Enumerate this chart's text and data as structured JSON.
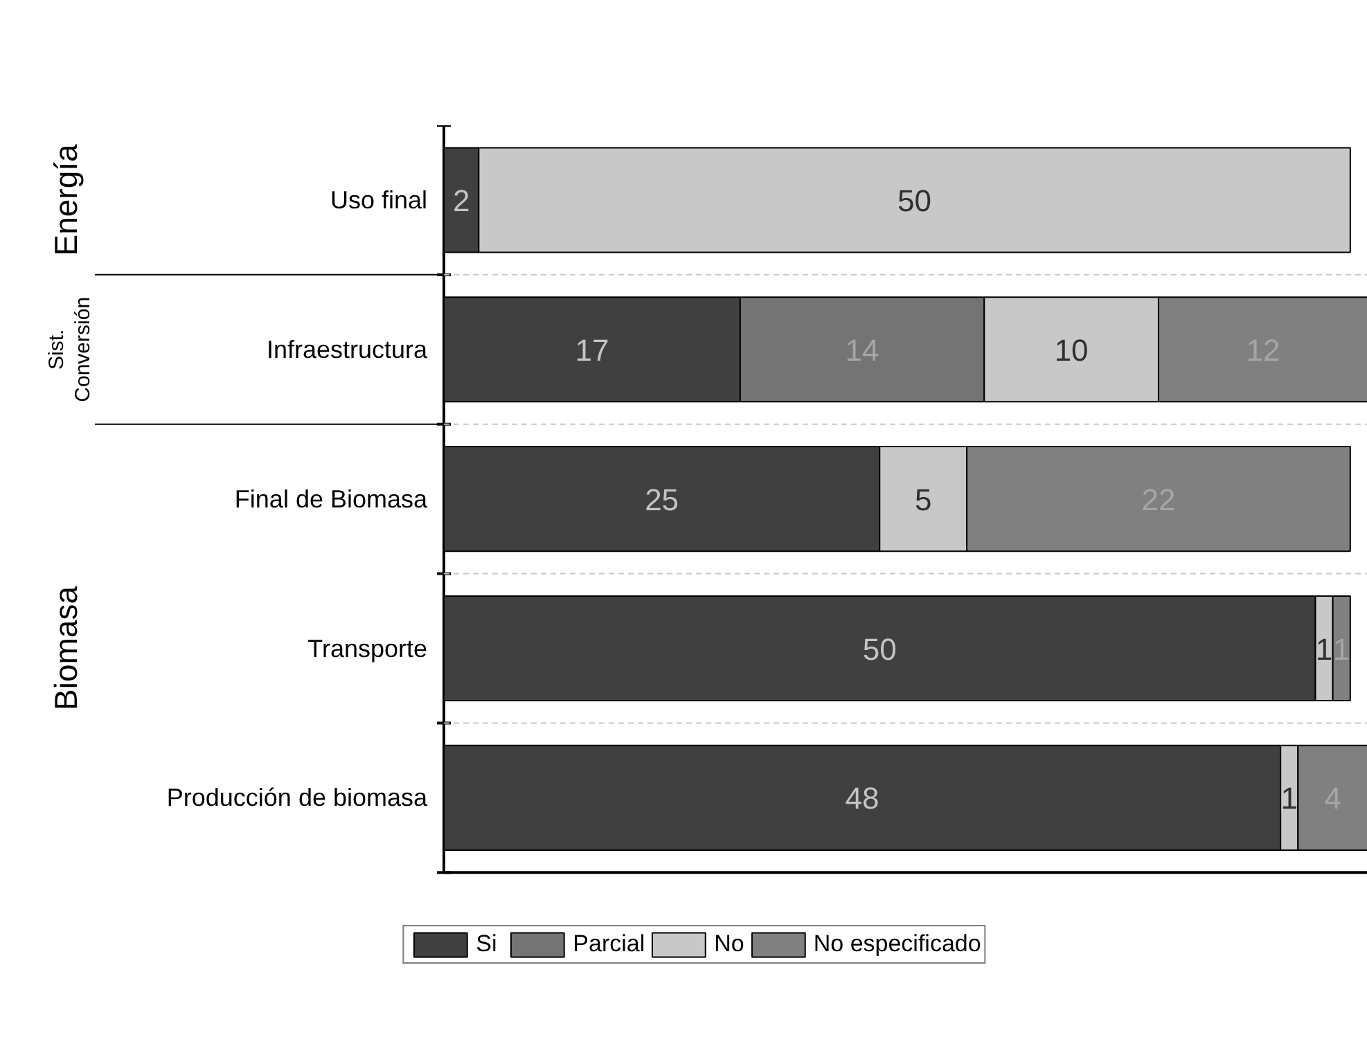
{
  "chart_data": {
    "type": "bar",
    "orientation": "horizontal",
    "stacked": true,
    "data_labels": true,
    "categories": [
      "Uso final",
      "Infraestructura",
      "Final de Biomasa",
      "Transporte",
      "Producción de biomasa"
    ],
    "series": [
      {
        "name": "Si",
        "color": "#404040",
        "values": [
          2,
          17,
          25,
          50,
          48
        ]
      },
      {
        "name": "Parcial",
        "color": "#747474",
        "values": [
          null,
          14,
          null,
          null,
          null
        ]
      },
      {
        "name": "No",
        "color": "#c8c8c8",
        "values": [
          50,
          10,
          5,
          1,
          1
        ]
      },
      {
        "name": "No especificado",
        "color": "#808080",
        "values": [
          null,
          12,
          22,
          1,
          4
        ]
      }
    ],
    "xlim": [
      0,
      53
    ],
    "tick_labels": "y",
    "grid": "y",
    "legend": "bottom",
    "annotations": [
      "Energía",
      "Sist.\nConversión",
      "Biomasa"
    ]
  }
}
